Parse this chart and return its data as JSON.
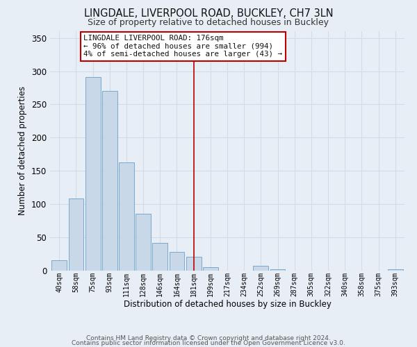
{
  "title": "LINGDALE, LIVERPOOL ROAD, BUCKLEY, CH7 3LN",
  "subtitle": "Size of property relative to detached houses in Buckley",
  "xlabel": "Distribution of detached houses by size in Buckley",
  "ylabel": "Number of detached properties",
  "categories": [
    "40sqm",
    "58sqm",
    "75sqm",
    "93sqm",
    "111sqm",
    "128sqm",
    "146sqm",
    "164sqm",
    "181sqm",
    "199sqm",
    "217sqm",
    "234sqm",
    "252sqm",
    "269sqm",
    "287sqm",
    "305sqm",
    "322sqm",
    "340sqm",
    "358sqm",
    "375sqm",
    "393sqm"
  ],
  "values": [
    16,
    109,
    291,
    270,
    163,
    86,
    42,
    28,
    21,
    5,
    0,
    0,
    7,
    2,
    0,
    0,
    0,
    0,
    0,
    0,
    2
  ],
  "bar_color": "#c8d8e8",
  "bar_edge_color": "#6ba0c8",
  "grid_color": "#d0dce8",
  "vline_x": 8,
  "vline_color": "#bb0000",
  "annotation_line1": "LINGDALE LIVERPOOL ROAD: 176sqm",
  "annotation_line2": "← 96% of detached houses are smaller (994)",
  "annotation_line3": "4% of semi-detached houses are larger (43) →",
  "annotation_box_color": "#ffffff",
  "annotation_box_edge": "#bb0000",
  "ylim": [
    0,
    360
  ],
  "yticks": [
    0,
    50,
    100,
    150,
    200,
    250,
    300,
    350
  ],
  "footer_line1": "Contains HM Land Registry data © Crown copyright and database right 2024.",
  "footer_line2": "Contains public sector information licensed under the Open Government Licence v3.0.",
  "bg_color": "#e8eef5"
}
